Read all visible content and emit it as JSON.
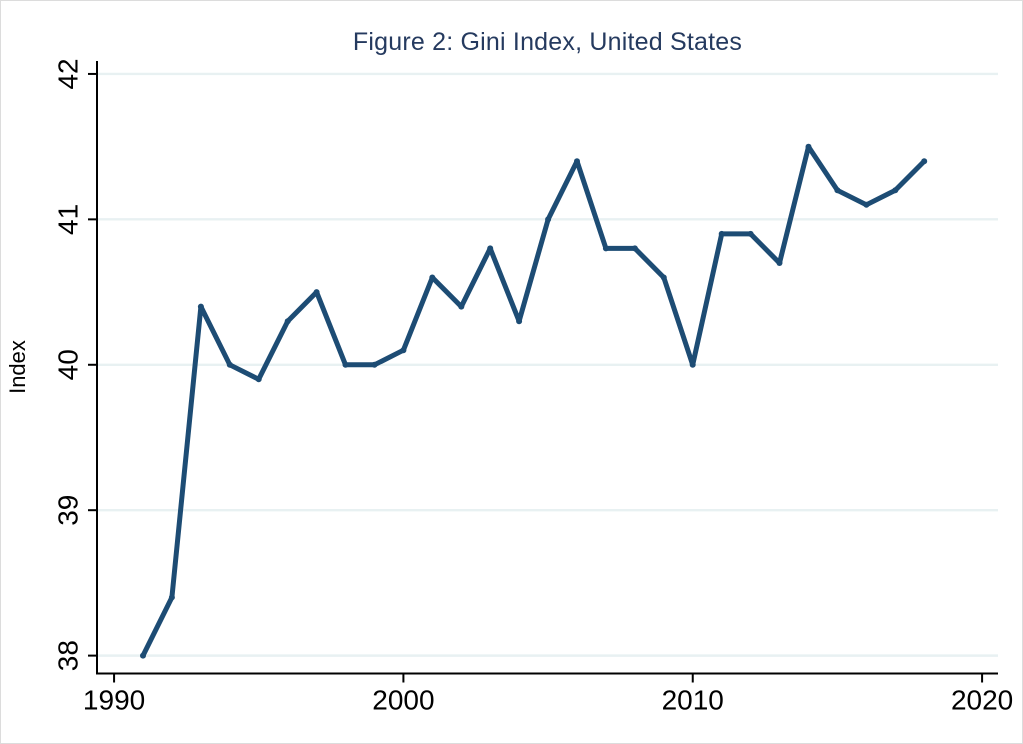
{
  "figure": {
    "title": "Figure 2: Gini Index, United States",
    "title_color": "#253a5f",
    "background_color": "#ffffff",
    "border_color": "#dcdcdc"
  },
  "chart_data": {
    "type": "line",
    "title": "Figure 2: Gini Index, United States",
    "xlabel": "",
    "ylabel": "Index",
    "x": [
      1991,
      1992,
      1993,
      1994,
      1995,
      1996,
      1997,
      1998,
      1999,
      2000,
      2001,
      2002,
      2003,
      2004,
      2005,
      2006,
      2007,
      2008,
      2009,
      2010,
      2011,
      2012,
      2013,
      2014,
      2015,
      2016,
      2017,
      2018
    ],
    "values": [
      38.0,
      38.4,
      40.4,
      40.0,
      39.9,
      40.3,
      40.5,
      40.0,
      40.0,
      40.1,
      40.6,
      40.4,
      40.8,
      40.3,
      41.0,
      41.4,
      40.8,
      40.8,
      40.6,
      40.0,
      40.9,
      40.9,
      40.7,
      41.5,
      41.2,
      41.1,
      41.2,
      41.4
    ],
    "xticks": [
      1990,
      2000,
      2010,
      2020
    ],
    "yticks": [
      38,
      39,
      40,
      41,
      42
    ],
    "xlim": [
      1989.41,
      2020.55
    ],
    "ylim": [
      37.877,
      42.089
    ],
    "grid": "horizontal",
    "legend_position": "none",
    "line_color": "#1d4c74",
    "gridline_color": "#e8f1f2",
    "axis_color": "#000000",
    "tick_label_color": "#000000"
  }
}
